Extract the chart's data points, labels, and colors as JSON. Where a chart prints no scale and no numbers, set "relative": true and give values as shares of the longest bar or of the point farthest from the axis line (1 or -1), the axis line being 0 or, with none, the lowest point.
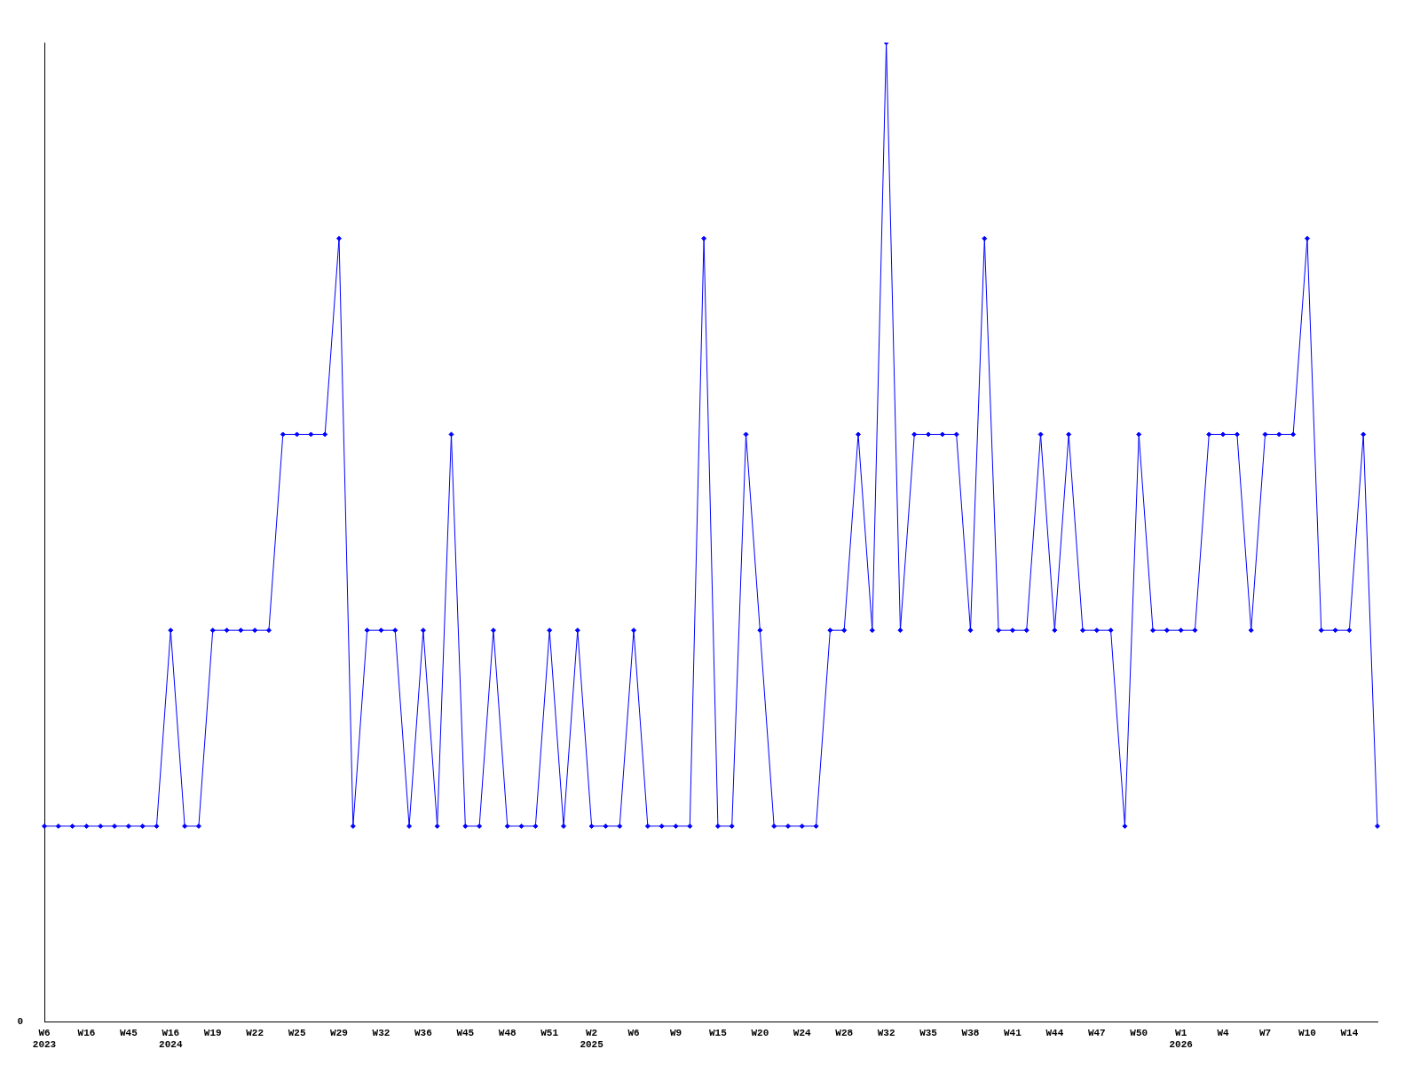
{
  "chart_data": {
    "type": "line",
    "relative": true,
    "color": "#0000ff",
    "marker": "diamond",
    "grid": false,
    "legend": false,
    "annotations": [
      "0"
    ],
    "categories": [
      "W6\n2023",
      null,
      null,
      "W16",
      null,
      null,
      "W45",
      null,
      null,
      "W16\n2024",
      null,
      null,
      "W19",
      null,
      null,
      "W22",
      null,
      null,
      "W25",
      null,
      null,
      "W29",
      null,
      null,
      "W32",
      null,
      null,
      "W36",
      null,
      null,
      "W45",
      null,
      null,
      "W48",
      null,
      null,
      "W51",
      null,
      null,
      "W2\n2025",
      null,
      null,
      "W6",
      null,
      null,
      "W9",
      null,
      null,
      "W15",
      null,
      null,
      "W20",
      null,
      null,
      "W24",
      null,
      null,
      "W28",
      null,
      null,
      "W32",
      null,
      null,
      "W35",
      null,
      null,
      "W38",
      null,
      null,
      "W41",
      null,
      null,
      "W44",
      null,
      null,
      "W47",
      null,
      null,
      "W50",
      null,
      null,
      "W1\n2026",
      null,
      null,
      "W4",
      null,
      null,
      "W7",
      null,
      null,
      "W10",
      null,
      null,
      "W14",
      null,
      null
    ],
    "values": [
      0.2,
      0.2,
      0.2,
      0.2,
      0.2,
      0.2,
      0.2,
      0.2,
      0.2,
      0.4,
      0.2,
      0.2,
      0.4,
      0.4,
      0.4,
      0.4,
      0.4,
      0.6,
      0.6,
      0.6,
      0.6,
      0.8,
      0.2,
      0.4,
      0.4,
      0.4,
      0.2,
      0.4,
      0.2,
      0.6,
      0.2,
      0.2,
      0.4,
      0.2,
      0.2,
      0.2,
      0.4,
      0.2,
      0.4,
      0.2,
      0.2,
      0.2,
      0.4,
      0.2,
      0.2,
      0.2,
      0.2,
      0.8,
      0.2,
      0.2,
      0.6,
      0.4,
      0.2,
      0.2,
      0.2,
      0.2,
      0.4,
      0.4,
      0.6,
      0.4,
      1,
      0.4,
      0.6,
      0.6,
      0.6,
      0.6,
      0.4,
      0.8,
      0.4,
      0.4,
      0.4,
      0.6,
      0.4,
      0.6,
      0.4,
      0.4,
      0.4,
      0.2,
      0.6,
      0.4,
      0.4,
      0.4,
      0.4,
      0.6,
      0.6,
      0.6,
      0.4,
      0.6,
      0.6,
      0.6,
      0.8,
      0.4,
      0.4,
      0.4,
      0.6,
      0.2
    ]
  }
}
